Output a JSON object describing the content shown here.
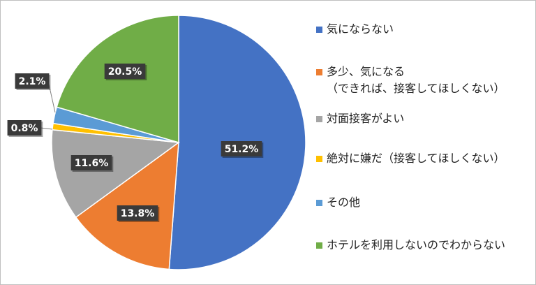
{
  "chart_data": {
    "type": "pie",
    "slices": [
      {
        "label": "気にならない",
        "value": 51.2,
        "value_label": "51.2%",
        "color": "#4472C4"
      },
      {
        "label": "多少、気になる\n（できれば、接客してほしくない）",
        "value": 13.8,
        "value_label": "13.8%",
        "color": "#ED7D31"
      },
      {
        "label": "対面接客がよい",
        "value": 11.6,
        "value_label": "11.6%",
        "color": "#A5A5A5"
      },
      {
        "label": "絶対に嫌だ（接客してほしくない）",
        "value": 0.8,
        "value_label": "0.8%",
        "color": "#FFC000"
      },
      {
        "label": "その他",
        "value": 2.1,
        "value_label": "2.1%",
        "color": "#5B9BD5"
      },
      {
        "label": "ホテルを利用しないのでわからない",
        "value": 20.5,
        "value_label": "20.5%",
        "color": "#70AD47"
      }
    ],
    "legend_position": "right"
  }
}
